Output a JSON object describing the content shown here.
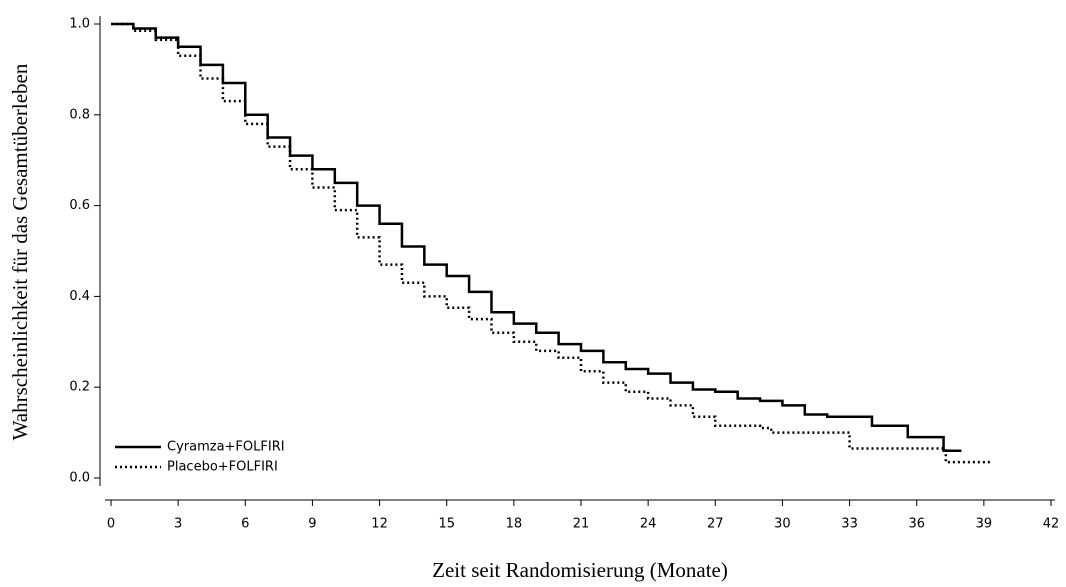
{
  "chart_data": {
    "type": "step",
    "x_label": "Zeit seit Randomisierung (Monate)",
    "y_label": "Wahrscheinlichkeit für das Gesamtüberleben",
    "xlim": [
      0,
      42
    ],
    "xticks": [
      0,
      3,
      6,
      9,
      12,
      15,
      18,
      21,
      24,
      27,
      30,
      33,
      36,
      39,
      42
    ],
    "ylim": [
      0,
      1
    ],
    "yticks": [
      {
        "value": 0,
        "label": "0.0"
      },
      0.2,
      0.4,
      0.6,
      0.8,
      {
        "value": 1,
        "label": "1.0"
      }
    ],
    "legend": "lower left",
    "series": [
      {
        "name": "Cyramza+FOLFIRI",
        "color": "#000000",
        "dash": "solid",
        "x": [
          0,
          0.5,
          1,
          2,
          3,
          4,
          5,
          6,
          7,
          8,
          9,
          10,
          11,
          12,
          13,
          14,
          15,
          16,
          17,
          18,
          19,
          20,
          21,
          22,
          23,
          24,
          25,
          26,
          27,
          28,
          29,
          30,
          31,
          32,
          33,
          34,
          35.6,
          37.2,
          38
        ],
        "values": [
          1.0,
          1.0,
          0.99,
          0.97,
          0.95,
          0.91,
          0.87,
          0.8,
          0.75,
          0.71,
          0.68,
          0.65,
          0.6,
          0.56,
          0.51,
          0.47,
          0.445,
          0.41,
          0.365,
          0.34,
          0.32,
          0.295,
          0.28,
          0.255,
          0.24,
          0.23,
          0.21,
          0.195,
          0.19,
          0.175,
          0.17,
          0.16,
          0.14,
          0.135,
          0.135,
          0.115,
          0.09,
          0.06,
          0.06
        ]
      },
      {
        "name": "Placebo+FOLFIRI",
        "color": "#000000",
        "dash": "dotted",
        "x": [
          0,
          1,
          2,
          3,
          4,
          5,
          6,
          7,
          8,
          9,
          10,
          11,
          12,
          13,
          14,
          15,
          16,
          17,
          18,
          19,
          20,
          21,
          22,
          23,
          24,
          25,
          26,
          27,
          28,
          29,
          29.5,
          32.5,
          33,
          37.2,
          37.3,
          39.3
        ],
        "values": [
          1.0,
          0.985,
          0.965,
          0.93,
          0.88,
          0.83,
          0.78,
          0.73,
          0.68,
          0.64,
          0.59,
          0.53,
          0.47,
          0.43,
          0.4,
          0.375,
          0.35,
          0.32,
          0.3,
          0.28,
          0.265,
          0.235,
          0.21,
          0.19,
          0.175,
          0.16,
          0.135,
          0.115,
          0.115,
          0.11,
          0.1,
          0.1,
          0.065,
          0.065,
          0.035,
          0.035
        ]
      }
    ]
  }
}
